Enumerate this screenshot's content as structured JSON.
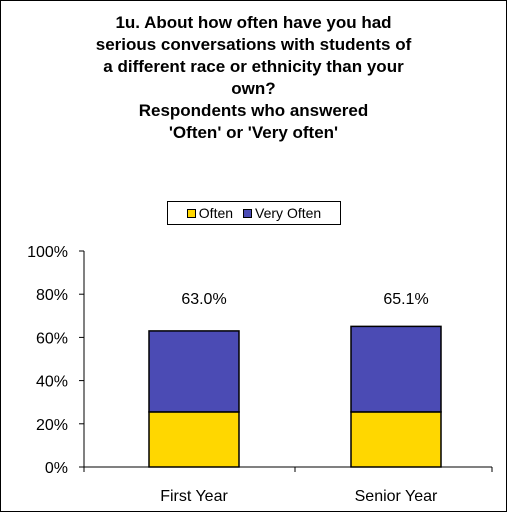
{
  "chart_data": {
    "type": "bar",
    "stacked": true,
    "title_lines": [
      "1u. About how often have you had",
      "serious conversations with students of",
      "a different race or ethnicity than your",
      "own?",
      "Respondents who answered",
      "'Often' or 'Very often'"
    ],
    "categories": [
      "First Year",
      "Senior Year"
    ],
    "series": [
      {
        "name": "Often",
        "color": "#FFD700",
        "values": [
          25.5,
          25.5
        ]
      },
      {
        "name": "Very Often",
        "color": "#4B4BB4",
        "values": [
          37.5,
          39.6
        ]
      }
    ],
    "totals": [
      "63.0%",
      "65.1%"
    ],
    "total_values": [
      63.0,
      65.1
    ],
    "ylim": [
      0,
      100
    ],
    "yticks": [
      {
        "value": 0,
        "label": "0%"
      },
      {
        "value": 20,
        "label": "20%"
      },
      {
        "value": 40,
        "label": "40%"
      },
      {
        "value": 60,
        "label": "60%"
      },
      {
        "value": 80,
        "label": "80%"
      },
      {
        "value": 100,
        "label": "100%"
      }
    ],
    "legend_position": "top",
    "grid": false
  }
}
